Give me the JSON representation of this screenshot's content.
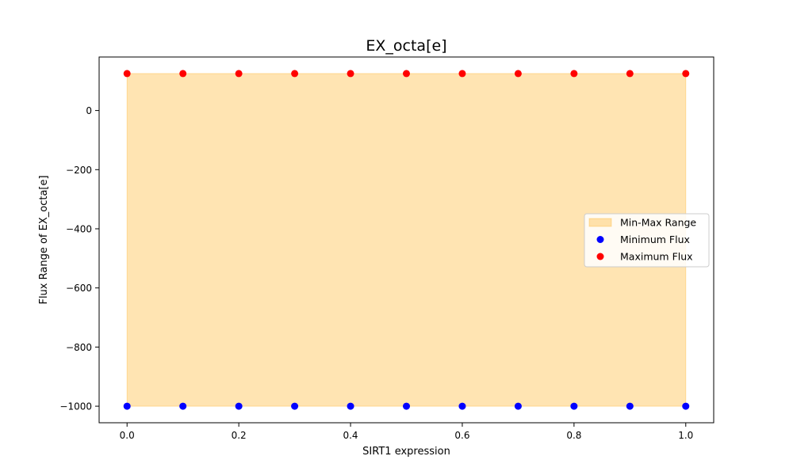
{
  "chart_data": {
    "type": "scatter",
    "title": "EX_octa[e]",
    "xlabel": "SIRT1 expression",
    "ylabel": "Flux Range of EX_octa[e]",
    "xlim": [
      -0.05,
      1.05
    ],
    "ylim": [
      -1056,
      181
    ],
    "x_ticks": [
      0.0,
      0.2,
      0.4,
      0.6,
      0.8,
      1.0
    ],
    "x_tick_labels": [
      "0.0",
      "0.2",
      "0.4",
      "0.6",
      "0.8",
      "1.0"
    ],
    "y_ticks": [
      0,
      -200,
      -400,
      -600,
      -800,
      -1000
    ],
    "y_tick_labels": [
      "0",
      "−200",
      "−400",
      "−600",
      "−800",
      "−1000"
    ],
    "grid": false,
    "legend_placement": "center-right",
    "x": [
      0.0,
      0.1,
      0.2,
      0.3,
      0.4,
      0.5,
      0.6,
      0.7,
      0.8,
      0.9,
      1.0
    ],
    "series": [
      {
        "name": "Min-Max Range",
        "kind": "fill_between",
        "lower": [
          -1000,
          -1000,
          -1000,
          -1000,
          -1000,
          -1000,
          -1000,
          -1000,
          -1000,
          -1000,
          -1000
        ],
        "upper": [
          125,
          125,
          125,
          125,
          125,
          125,
          125,
          125,
          125,
          125,
          125
        ],
        "color": "#FFA500"
      },
      {
        "name": "Minimum Flux",
        "kind": "scatter",
        "values": [
          -1000,
          -1000,
          -1000,
          -1000,
          -1000,
          -1000,
          -1000,
          -1000,
          -1000,
          -1000,
          -1000
        ],
        "color": "#0000FF"
      },
      {
        "name": "Maximum Flux",
        "kind": "scatter",
        "values": [
          125,
          125,
          125,
          125,
          125,
          125,
          125,
          125,
          125,
          125,
          125
        ],
        "color": "#FF0000"
      }
    ]
  }
}
